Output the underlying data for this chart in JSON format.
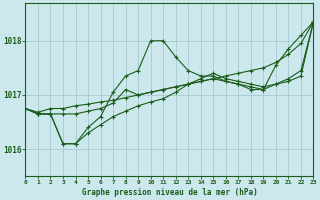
{
  "bg_color": "#cce8ed",
  "grid_color": "#aacdd4",
  "line_color": "#1a5c1a",
  "title": "Graphe pression niveau de la mer (hPa)",
  "xlim": [
    0,
    23
  ],
  "ylim": [
    1015.5,
    1018.7
  ],
  "yticks": [
    1016,
    1017,
    1018
  ],
  "xticks": [
    0,
    1,
    2,
    3,
    4,
    5,
    6,
    7,
    8,
    9,
    10,
    11,
    12,
    13,
    14,
    15,
    16,
    17,
    18,
    19,
    20,
    21,
    22,
    23
  ],
  "series": [
    {
      "x": [
        0,
        1,
        2,
        3,
        4,
        5,
        6,
        7,
        8,
        9,
        10,
        11,
        12,
        13,
        14,
        15,
        16,
        17,
        18,
        19,
        20,
        21,
        22,
        23
      ],
      "y": [
        1016.75,
        1016.65,
        1016.65,
        1016.1,
        1016.1,
        1016.4,
        1016.6,
        1017.05,
        1017.35,
        1017.45,
        1018.0,
        1018.0,
        1017.7,
        1017.45,
        1017.35,
        1017.35,
        1017.25,
        1017.2,
        1017.1,
        1017.1,
        1017.55,
        1017.85,
        1018.1,
        1018.35
      ]
    },
    {
      "x": [
        0,
        1,
        2,
        3,
        4,
        5,
        6,
        7,
        8,
        9,
        10,
        11,
        12,
        13,
        14,
        15,
        16,
        17,
        18,
        19,
        20,
        21,
        22,
        23
      ],
      "y": [
        1016.75,
        1016.68,
        1016.75,
        1016.75,
        1016.8,
        1016.83,
        1016.87,
        1016.9,
        1016.95,
        1017.0,
        1017.05,
        1017.1,
        1017.15,
        1017.2,
        1017.25,
        1017.3,
        1017.35,
        1017.4,
        1017.45,
        1017.5,
        1017.6,
        1017.75,
        1017.95,
        1018.35
      ]
    },
    {
      "x": [
        0,
        1,
        2,
        3,
        4,
        5,
        6,
        7,
        8,
        9,
        10,
        11,
        12,
        13,
        14,
        15,
        16,
        17,
        18,
        19,
        20,
        21,
        22,
        23
      ],
      "y": [
        1016.75,
        1016.65,
        1016.65,
        1016.1,
        1016.1,
        1016.3,
        1016.45,
        1016.6,
        1016.7,
        1016.8,
        1016.87,
        1016.93,
        1017.05,
        1017.2,
        1017.3,
        1017.4,
        1017.3,
        1017.25,
        1017.2,
        1017.15,
        1017.2,
        1017.3,
        1017.45,
        1018.35
      ]
    },
    {
      "x": [
        0,
        1,
        2,
        3,
        4,
        5,
        6,
        7,
        8,
        9,
        10,
        11,
        12,
        13,
        14,
        15,
        16,
        17,
        18,
        19,
        20,
        21,
        22,
        23
      ],
      "y": [
        1016.75,
        1016.65,
        1016.65,
        1016.65,
        1016.65,
        1016.7,
        1016.75,
        1016.85,
        1017.1,
        1017.0,
        1017.05,
        1017.1,
        1017.15,
        1017.2,
        1017.25,
        1017.3,
        1017.25,
        1017.2,
        1017.15,
        1017.1,
        1017.2,
        1017.25,
        1017.35,
        1018.35
      ]
    }
  ]
}
